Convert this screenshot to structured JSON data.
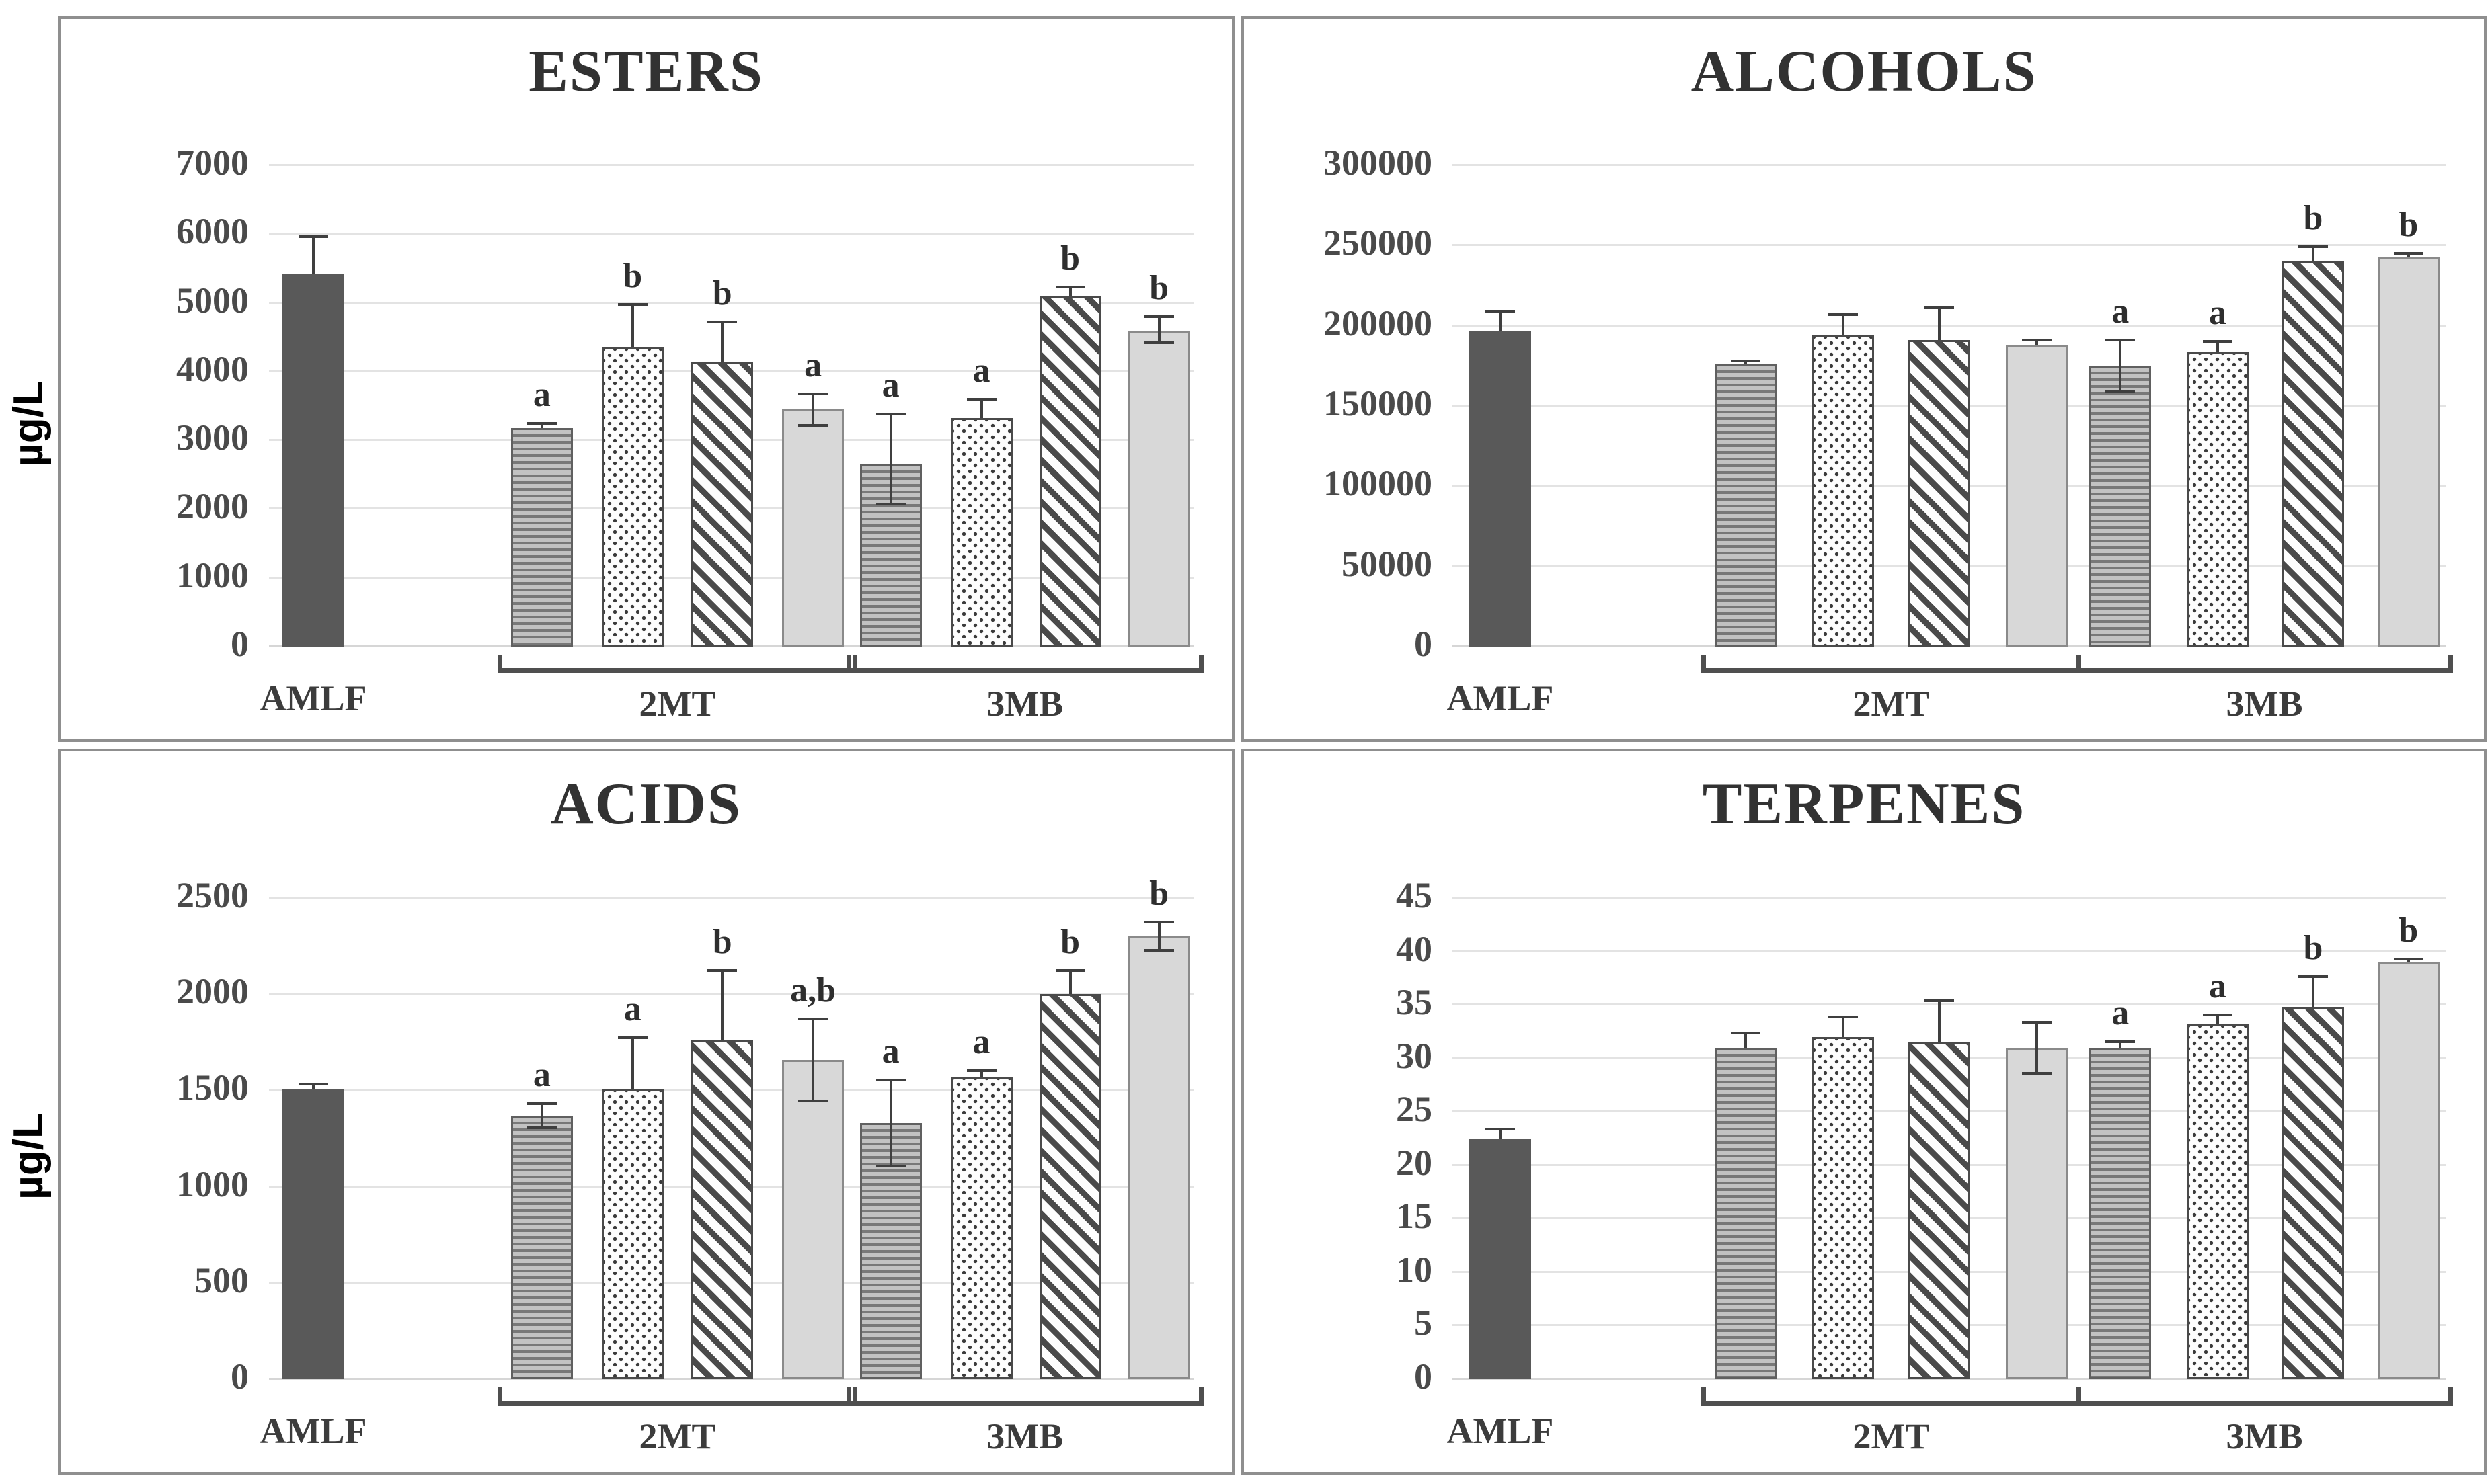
{
  "figure": {
    "row1_unit_label": "µg/L",
    "row2_unit_label": "µg/L",
    "colors": {
      "dark_bar": "#595959",
      "light_bar": "#d8d8d8",
      "pattern_ink": "#4a4a4a",
      "grid_line": "#e3e3e3",
      "panel_border": "#8f8f8f",
      "text": "#323232"
    }
  },
  "chart_data": [
    {
      "type": "bar",
      "title": "ESTERS",
      "ylabel": "µg/L",
      "ylim": [
        0,
        7000
      ],
      "ytick_step": 1000,
      "yticks": [
        "0",
        "1000",
        "2000",
        "3000",
        "4000",
        "5000",
        "6000",
        "7000"
      ],
      "grid": true,
      "legend_position": "none",
      "groups": [
        {
          "label": "AMLF",
          "bracket": false,
          "bars": [
            {
              "pattern": "solid-dark",
              "value": 5430,
              "err_up": 550,
              "err_down": 0,
              "letter": ""
            }
          ]
        },
        {
          "label": "2MT",
          "bracket": true,
          "bars": [
            {
              "pattern": "hlines",
              "value": 3180,
              "err_up": 90,
              "err_down": 0,
              "letter": "a"
            },
            {
              "pattern": "dots",
              "value": 4350,
              "err_up": 650,
              "err_down": 0,
              "letter": "b"
            },
            {
              "pattern": "diag",
              "value": 4140,
              "err_up": 600,
              "err_down": 0,
              "letter": "b"
            },
            {
              "pattern": "solid-light",
              "value": 3450,
              "err_up": 250,
              "err_down": 250,
              "letter": "a"
            }
          ]
        },
        {
          "label": "3MB",
          "bracket": true,
          "bars": [
            {
              "pattern": "hlines",
              "value": 2650,
              "err_up": 750,
              "err_down": 600,
              "letter": "a"
            },
            {
              "pattern": "dots",
              "value": 3320,
              "err_up": 300,
              "err_down": 0,
              "letter": "a"
            },
            {
              "pattern": "diag",
              "value": 5100,
              "err_up": 150,
              "err_down": 0,
              "letter": "b"
            },
            {
              "pattern": "solid-light",
              "value": 4600,
              "err_up": 220,
              "err_down": 200,
              "letter": "b"
            }
          ]
        }
      ]
    },
    {
      "type": "bar",
      "title": "ALCOHOLS",
      "ylabel": "",
      "ylim": [
        0,
        300000
      ],
      "ytick_step": 50000,
      "yticks": [
        "0",
        "50000",
        "100000",
        "150000",
        "200000",
        "250000",
        "300000"
      ],
      "grid": true,
      "legend_position": "none",
      "groups": [
        {
          "label": "AMLF",
          "bracket": false,
          "bars": [
            {
              "pattern": "solid-dark",
              "value": 197000,
              "err_up": 13000,
              "err_down": 0,
              "letter": ""
            }
          ]
        },
        {
          "label": "2MT",
          "bracket": true,
          "bars": [
            {
              "pattern": "hlines",
              "value": 176000,
              "err_up": 3000,
              "err_down": 0,
              "letter": ""
            },
            {
              "pattern": "dots",
              "value": 194000,
              "err_up": 14000,
              "err_down": 0,
              "letter": ""
            },
            {
              "pattern": "diag",
              "value": 191000,
              "err_up": 21000,
              "err_down": 0,
              "letter": ""
            },
            {
              "pattern": "solid-light",
              "value": 188000,
              "err_up": 4000,
              "err_down": 0,
              "letter": ""
            }
          ]
        },
        {
          "label": "3MB",
          "bracket": true,
          "bars": [
            {
              "pattern": "hlines",
              "value": 175000,
              "err_up": 17000,
              "err_down": 17000,
              "letter": "a"
            },
            {
              "pattern": "dots",
              "value": 184000,
              "err_up": 7000,
              "err_down": 0,
              "letter": "a"
            },
            {
              "pattern": "diag",
              "value": 240000,
              "err_up": 10000,
              "err_down": 0,
              "letter": "b"
            },
            {
              "pattern": "solid-light",
              "value": 243000,
              "err_up": 3000,
              "err_down": 0,
              "letter": "b"
            }
          ]
        }
      ]
    },
    {
      "type": "bar",
      "title": "ACIDS",
      "ylabel": "µg/L",
      "ylim": [
        0,
        2500
      ],
      "ytick_step": 500,
      "yticks": [
        "0",
        "500",
        "1000",
        "1500",
        "2000",
        "2500"
      ],
      "grid": true,
      "legend_position": "none",
      "groups": [
        {
          "label": "AMLF",
          "bracket": false,
          "bars": [
            {
              "pattern": "solid-dark",
              "value": 1510,
              "err_up": 30,
              "err_down": 0,
              "letter": ""
            }
          ]
        },
        {
          "label": "2MT",
          "bracket": true,
          "bars": [
            {
              "pattern": "hlines",
              "value": 1370,
              "err_up": 70,
              "err_down": 70,
              "letter": "a"
            },
            {
              "pattern": "dots",
              "value": 1510,
              "err_up": 270,
              "err_down": 0,
              "letter": "a"
            },
            {
              "pattern": "diag",
              "value": 1760,
              "err_up": 370,
              "err_down": 0,
              "letter": "b"
            },
            {
              "pattern": "solid-light",
              "value": 1660,
              "err_up": 220,
              "err_down": 220,
              "letter": "a,b"
            }
          ]
        },
        {
          "label": "3MB",
          "bracket": true,
          "bars": [
            {
              "pattern": "hlines",
              "value": 1330,
              "err_up": 230,
              "err_down": 230,
              "letter": "a"
            },
            {
              "pattern": "dots",
              "value": 1570,
              "err_up": 40,
              "err_down": 0,
              "letter": "a"
            },
            {
              "pattern": "diag",
              "value": 2000,
              "err_up": 130,
              "err_down": 0,
              "letter": "b"
            },
            {
              "pattern": "solid-light",
              "value": 2300,
              "err_up": 80,
              "err_down": 80,
              "letter": "b"
            }
          ]
        }
      ]
    },
    {
      "type": "bar",
      "title": "TERPENES",
      "ylabel": "",
      "ylim": [
        0,
        45
      ],
      "ytick_step": 5,
      "yticks": [
        "0",
        "5",
        "10",
        "15",
        "20",
        "25",
        "30",
        "35",
        "40",
        "45"
      ],
      "grid": true,
      "legend_position": "none",
      "groups": [
        {
          "label": "AMLF",
          "bracket": false,
          "bars": [
            {
              "pattern": "solid-dark",
              "value": 22.5,
              "err_up": 1,
              "err_down": 0,
              "letter": ""
            }
          ]
        },
        {
          "label": "2MT",
          "bracket": true,
          "bars": [
            {
              "pattern": "hlines",
              "value": 31,
              "err_up": 1.5,
              "err_down": 0,
              "letter": ""
            },
            {
              "pattern": "dots",
              "value": 32,
              "err_up": 2,
              "err_down": 0,
              "letter": ""
            },
            {
              "pattern": "diag",
              "value": 31.5,
              "err_up": 4,
              "err_down": 0,
              "letter": ""
            },
            {
              "pattern": "solid-light",
              "value": 31,
              "err_up": 2.5,
              "err_down": 2.5,
              "letter": ""
            }
          ]
        },
        {
          "label": "3MB",
          "bracket": true,
          "bars": [
            {
              "pattern": "hlines",
              "value": 31,
              "err_up": 0.7,
              "err_down": 0,
              "letter": "a"
            },
            {
              "pattern": "dots",
              "value": 33.2,
              "err_up": 1,
              "err_down": 0,
              "letter": "a"
            },
            {
              "pattern": "diag",
              "value": 34.8,
              "err_up": 3,
              "err_down": 0,
              "letter": "b"
            },
            {
              "pattern": "solid-light",
              "value": 39,
              "err_up": 0.4,
              "err_down": 0,
              "letter": "b"
            }
          ]
        }
      ]
    }
  ]
}
